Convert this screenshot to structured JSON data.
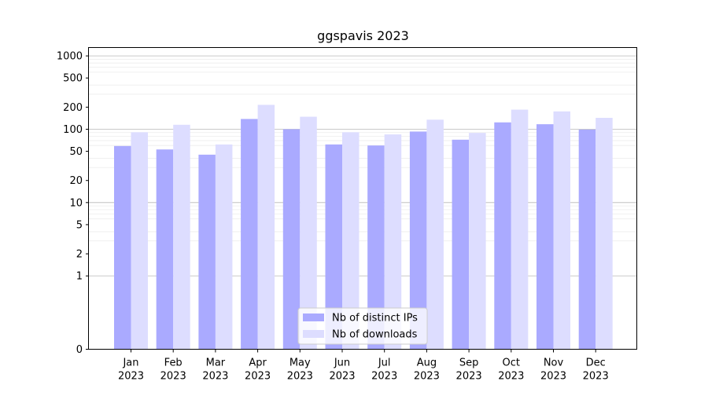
{
  "chart_data": {
    "type": "bar",
    "title": "ggspavis 2023",
    "xlabel": "",
    "ylabel": "",
    "y_scale": "symlog",
    "ylim": [
      0,
      1300
    ],
    "y_ticks": [
      0,
      1,
      2,
      5,
      10,
      20,
      50,
      100,
      200,
      500,
      1000
    ],
    "y_tick_labels": [
      "0",
      "1",
      "2",
      "5",
      "10",
      "20",
      "50",
      "100",
      "200",
      "500",
      "1000"
    ],
    "categories": [
      {
        "month": "Jan",
        "year": "2023"
      },
      {
        "month": "Feb",
        "year": "2023"
      },
      {
        "month": "Mar",
        "year": "2023"
      },
      {
        "month": "Apr",
        "year": "2023"
      },
      {
        "month": "May",
        "year": "2023"
      },
      {
        "month": "Jun",
        "year": "2023"
      },
      {
        "month": "Jul",
        "year": "2023"
      },
      {
        "month": "Aug",
        "year": "2023"
      },
      {
        "month": "Sep",
        "year": "2023"
      },
      {
        "month": "Oct",
        "year": "2023"
      },
      {
        "month": "Nov",
        "year": "2023"
      },
      {
        "month": "Dec",
        "year": "2023"
      }
    ],
    "series": [
      {
        "name": "Nb of distinct IPs",
        "color": "#aaaaff",
        "values": [
          59,
          53,
          45,
          138,
          100,
          62,
          60,
          93,
          72,
          124,
          117,
          99
        ]
      },
      {
        "name": "Nb of downloads",
        "color": "#ddddff",
        "values": [
          91,
          115,
          62,
          215,
          148,
          91,
          85,
          135,
          89,
          185,
          175,
          143
        ]
      }
    ],
    "grid": true,
    "legend_position": "bottom-center"
  }
}
